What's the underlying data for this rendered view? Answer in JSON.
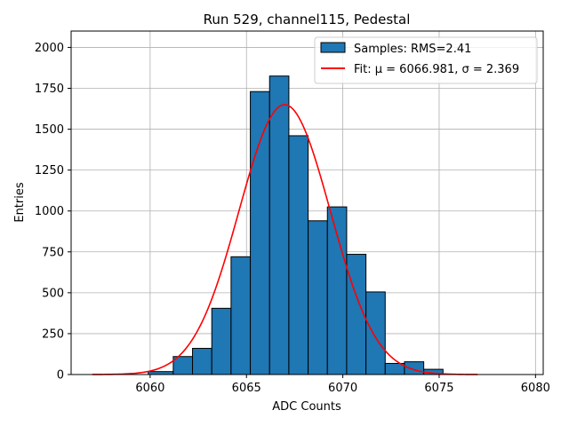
{
  "chart_data": {
    "type": "bar",
    "title": "Run 529, channel115, Pedestal",
    "xlabel": "ADC Counts",
    "ylabel": "Entries",
    "xlim": [
      6055.9,
      6080.4
    ],
    "ylim": [
      0,
      2100
    ],
    "xticks": [
      6060,
      6065,
      6070,
      6075,
      6080
    ],
    "xtick_labels": [
      "6060",
      "6065",
      "6070",
      "6075",
      "6080"
    ],
    "yticks": [
      0,
      250,
      500,
      750,
      1000,
      1250,
      1500,
      1750,
      2000
    ],
    "ytick_labels": [
      "0",
      "250",
      "500",
      "750",
      "1000",
      "1250",
      "1500",
      "1750",
      "2000"
    ],
    "grid": true,
    "legend_position": "top-right",
    "histogram": {
      "name": "Samples: RMS=2.41",
      "color": "#1f77b4",
      "bins": [
        {
          "left": 6059.9,
          "right": 6061.2,
          "count": 18
        },
        {
          "left": 6061.2,
          "right": 6062.2,
          "count": 110
        },
        {
          "left": 6062.2,
          "right": 6063.2,
          "count": 160
        },
        {
          "left": 6063.2,
          "right": 6064.2,
          "count": 405
        },
        {
          "left": 6064.2,
          "right": 6065.2,
          "count": 720
        },
        {
          "left": 6065.2,
          "right": 6066.2,
          "count": 1730
        },
        {
          "left": 6066.2,
          "right": 6067.2,
          "count": 1825
        },
        {
          "left": 6067.2,
          "right": 6068.2,
          "count": 1460
        },
        {
          "left": 6068.2,
          "right": 6069.2,
          "count": 940
        },
        {
          "left": 6069.2,
          "right": 6070.2,
          "count": 1025
        },
        {
          "left": 6070.2,
          "right": 6071.2,
          "count": 735
        },
        {
          "left": 6071.2,
          "right": 6072.2,
          "count": 505
        },
        {
          "left": 6072.2,
          "right": 6073.2,
          "count": 68
        },
        {
          "left": 6073.2,
          "right": 6074.2,
          "count": 78
        },
        {
          "left": 6074.2,
          "right": 6075.2,
          "count": 32
        }
      ]
    },
    "fit": {
      "name": "Fit: μ = 6066.981, σ = 2.369",
      "color": "#ff0000",
      "type": "gaussian",
      "mu": 6066.981,
      "sigma": 2.369,
      "amplitude": 1650,
      "x_range": [
        6057,
        6077
      ]
    }
  }
}
